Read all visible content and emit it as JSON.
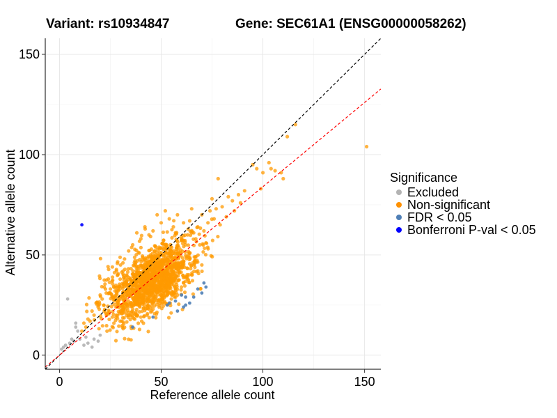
{
  "header": {
    "variant": "Variant: rs10934847",
    "gene": "Gene: SEC61A1 (ENSG00000058262)"
  },
  "legend": {
    "title": "Significance",
    "items": [
      {
        "label": "Excluded",
        "color": "#b3b3b3"
      },
      {
        "label": "Non-significant",
        "color": "#ff9100"
      },
      {
        "label": "FDR < 0.05",
        "color": "#4f7fb6"
      },
      {
        "label": "Bonferroni P-val < 0.05",
        "color": "#0000ff"
      }
    ]
  },
  "chart_data": {
    "type": "scatter",
    "xlabel": "Reference allele count",
    "ylabel": "Alternative allele count",
    "xlim": [
      -7,
      158
    ],
    "ylim": [
      -7,
      158
    ],
    "xticks": [
      0,
      50,
      100,
      150
    ],
    "yticks": [
      0,
      50,
      100,
      150
    ],
    "grid": true,
    "reference_lines": [
      {
        "name": "identity",
        "slope": 1.0,
        "intercept": 0,
        "color": "#000000",
        "dash": "dashed"
      },
      {
        "name": "fitted",
        "slope": 0.84,
        "intercept": 0,
        "color": "#ff0000",
        "dash": "dashed"
      }
    ],
    "series": [
      {
        "name": "Excluded",
        "color": "#b3b3b3",
        "points": [
          [
            1,
            3
          ],
          [
            3,
            5
          ],
          [
            4,
            28
          ],
          [
            5,
            6
          ],
          [
            6,
            8
          ],
          [
            7,
            7
          ],
          [
            8,
            14
          ],
          [
            8,
            16
          ],
          [
            9,
            12
          ],
          [
            10,
            8
          ],
          [
            12,
            5
          ],
          [
            13,
            9
          ],
          [
            14,
            6
          ],
          [
            16,
            4
          ],
          [
            17,
            8
          ],
          [
            19,
            7
          ],
          [
            20,
            10
          ],
          [
            2,
            4
          ]
        ]
      },
      {
        "name": "Non-significant",
        "color": "#ff9900",
        "cluster": {
          "center_x": 45,
          "center_y": 37,
          "sd_major": 13,
          "sd_minor": 6.5,
          "angle_deg": 40,
          "count": 1500,
          "seed": 10934847,
          "x_min": 6,
          "y_min": 7
        },
        "points": [
          [
            97,
            93
          ],
          [
            100,
            91
          ],
          [
            103,
            96
          ],
          [
            104,
            93
          ],
          [
            106,
            92
          ],
          [
            109,
            91
          ],
          [
            110,
            88
          ],
          [
            112,
            109
          ],
          [
            116,
            115
          ],
          [
            151,
            104
          ],
          [
            95,
            95
          ],
          [
            91,
            82
          ],
          [
            99,
            83
          ],
          [
            89,
            76
          ],
          [
            88,
            80
          ],
          [
            86,
            72
          ],
          [
            83,
            79
          ],
          [
            78,
            88
          ],
          [
            77,
            73
          ],
          [
            85,
            77
          ],
          [
            82,
            69
          ],
          [
            80,
            74
          ],
          [
            79,
            65
          ],
          [
            75,
            78
          ],
          [
            74,
            72
          ],
          [
            76,
            68
          ],
          [
            73,
            66
          ],
          [
            71,
            62
          ],
          [
            70,
            70
          ],
          [
            68,
            64
          ],
          [
            67,
            58
          ],
          [
            66,
            61
          ],
          [
            72,
            56
          ],
          [
            69,
            55
          ],
          [
            65,
            73
          ],
          [
            64,
            67
          ],
          [
            63,
            60
          ],
          [
            62,
            55
          ],
          [
            61,
            66
          ],
          [
            60,
            58
          ],
          [
            58,
            70
          ],
          [
            57,
            61
          ],
          [
            56,
            64
          ],
          [
            55,
            52
          ],
          [
            54,
            68
          ],
          [
            52,
            72
          ],
          [
            50,
            66
          ],
          [
            48,
            70
          ],
          [
            46,
            62
          ],
          [
            44,
            60
          ],
          [
            42,
            64
          ],
          [
            40,
            58
          ],
          [
            38,
            61
          ],
          [
            36,
            55
          ],
          [
            34,
            52
          ],
          [
            32,
            48
          ],
          [
            30,
            45
          ],
          [
            28,
            42
          ],
          [
            26,
            44
          ],
          [
            24,
            38
          ],
          [
            22,
            34
          ],
          [
            20,
            30
          ],
          [
            18,
            26
          ],
          [
            16,
            22
          ],
          [
            14,
            18
          ],
          [
            12,
            16
          ],
          [
            11,
            12
          ],
          [
            13,
            14
          ],
          [
            15,
            17
          ],
          [
            17,
            20
          ],
          [
            19,
            24
          ],
          [
            21,
            28
          ],
          [
            23,
            31
          ],
          [
            25,
            33
          ],
          [
            60,
            34
          ],
          [
            58,
            30
          ],
          [
            55,
            28
          ],
          [
            52,
            26
          ],
          [
            49,
            24
          ],
          [
            46,
            23
          ],
          [
            43,
            20
          ],
          [
            40,
            19
          ],
          [
            37,
            18
          ],
          [
            35,
            20
          ],
          [
            65,
            40
          ],
          [
            68,
            42
          ],
          [
            70,
            45
          ],
          [
            63,
            38
          ],
          [
            61,
            36
          ],
          [
            57,
            33
          ],
          [
            54,
            31
          ],
          [
            30,
            22
          ],
          [
            28,
            20
          ],
          [
            26,
            19
          ],
          [
            24,
            21
          ]
        ]
      },
      {
        "name": "FDR < 0.05",
        "color": "#4f7fb6",
        "points": [
          [
            36,
            14
          ],
          [
            46,
            19
          ],
          [
            53,
            25
          ],
          [
            54,
            26
          ],
          [
            57,
            27
          ],
          [
            61,
            24
          ],
          [
            62,
            29
          ],
          [
            62,
            25
          ],
          [
            64,
            26
          ],
          [
            66,
            29
          ],
          [
            68,
            33
          ],
          [
            70,
            31
          ],
          [
            71,
            36
          ],
          [
            72,
            34
          ],
          [
            60,
            30
          ],
          [
            58,
            22
          ]
        ]
      },
      {
        "name": "Bonferroni P-val < 0.05",
        "color": "#0000ff",
        "points": [
          [
            11,
            65
          ]
        ]
      }
    ]
  }
}
